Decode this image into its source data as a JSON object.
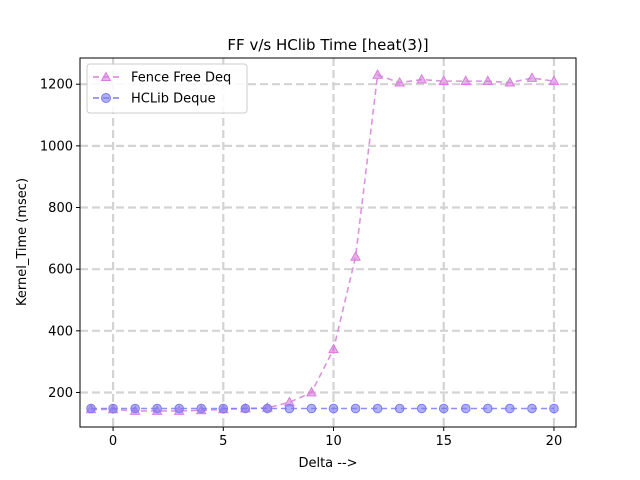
{
  "chart_data": {
    "type": "line",
    "title": "FF v/s HClib Time [heat(3)]",
    "xlabel": "Delta -->",
    "ylabel": "Kernel_Time (msec)",
    "xlim": [
      -1.5,
      21.0
    ],
    "ylim": [
      88,
      1285
    ],
    "xticks": [
      0,
      5,
      10,
      15,
      20
    ],
    "yticks": [
      200,
      400,
      600,
      800,
      1000,
      1200
    ],
    "grid": true,
    "grid_style": "dashed",
    "legend_position": "upper-left",
    "x": [
      -1,
      0,
      1,
      2,
      3,
      4,
      5,
      6,
      7,
      8,
      9,
      10,
      11,
      12,
      13,
      14,
      15,
      16,
      17,
      18,
      19,
      20
    ],
    "series": [
      {
        "name": "Fence Free Deq",
        "marker": "triangle",
        "color": "#d77fdc",
        "values": [
          145,
          145,
          140,
          140,
          140,
          142,
          145,
          148,
          150,
          168,
          200,
          340,
          640,
          1230,
          1205,
          1215,
          1210,
          1210,
          1210,
          1205,
          1220,
          1210
        ]
      },
      {
        "name": "HCLib Deque",
        "marker": "circle",
        "color": "#7b7bef",
        "values": [
          148,
          148,
          148,
          148,
          148,
          148,
          148,
          148,
          148,
          148,
          148,
          148,
          148,
          148,
          148,
          148,
          148,
          148,
          148,
          148,
          148,
          148
        ]
      }
    ]
  }
}
